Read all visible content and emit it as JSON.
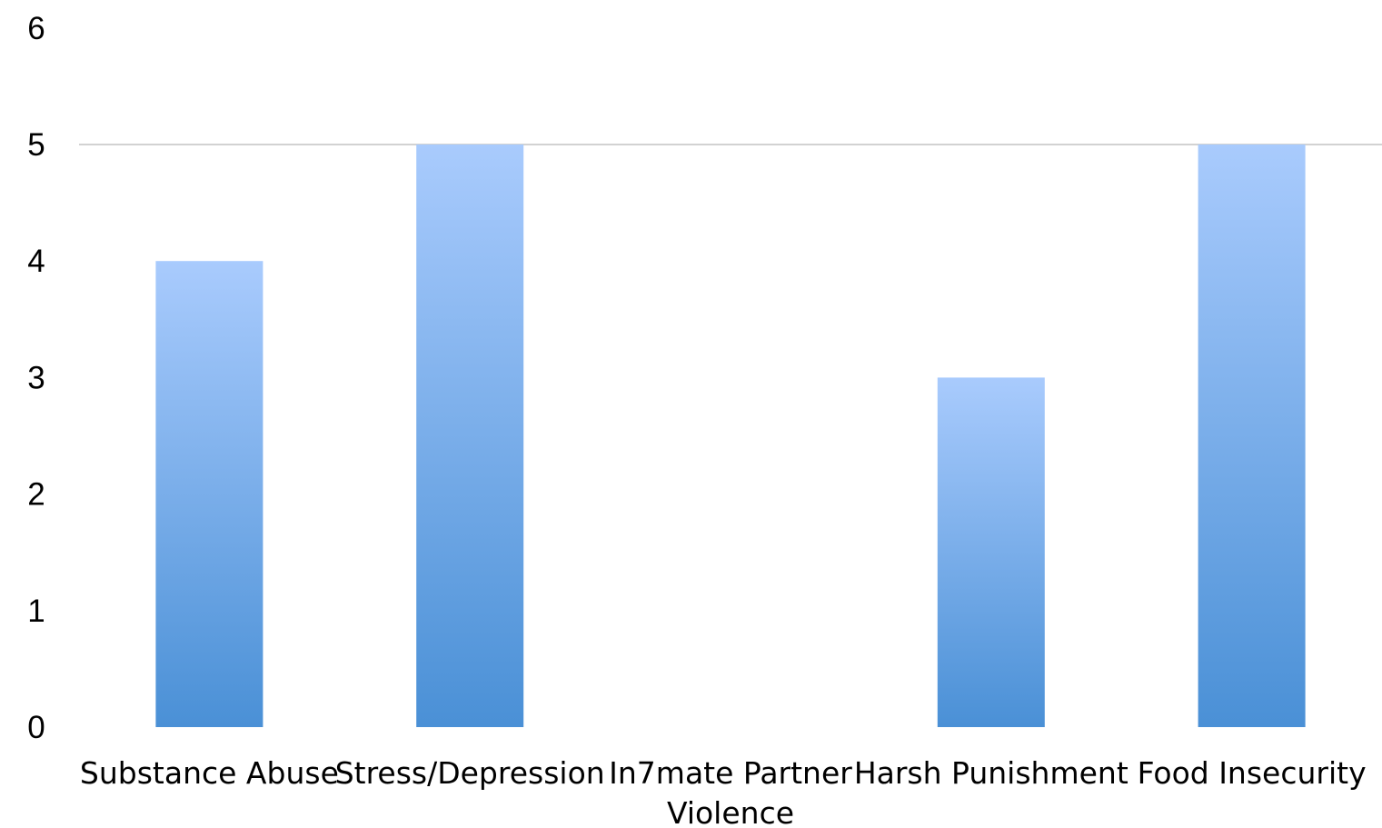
{
  "chart_data": {
    "type": "bar",
    "categories": [
      "Substance Abuse",
      "Stress/Depression",
      "In7mate Partner Violence",
      "Harsh Punishment",
      "Food Insecurity"
    ],
    "category_label_lines": [
      [
        "Substance Abuse"
      ],
      [
        "Stress/Depression"
      ],
      [
        "In7mate Partner",
        "Violence"
      ],
      [
        "Harsh Punishment"
      ],
      [
        "Food Insecurity"
      ]
    ],
    "values": [
      4,
      5,
      0,
      3,
      5
    ],
    "ylim": [
      0,
      6
    ],
    "yticks": [
      "0",
      "1",
      "2",
      "3",
      "4",
      "5",
      "6"
    ],
    "gridlines": [
      5
    ],
    "legend": "none",
    "bar_color_top": "#a9cbfd",
    "bar_color_bottom": "#4a90d6"
  }
}
